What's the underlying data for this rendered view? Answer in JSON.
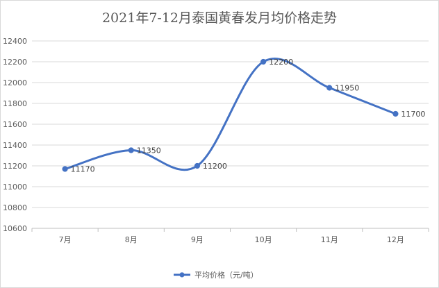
{
  "chart_data": {
    "type": "line",
    "title": "2021年7-12月泰国黄春发月均价格走势",
    "categories": [
      "7月",
      "8月",
      "9月",
      "10月",
      "11月",
      "12月"
    ],
    "series": [
      {
        "name": "平均价格（元/吨）",
        "values": [
          11170,
          11350,
          11200,
          12200,
          11950,
          11700
        ],
        "color": "#4472c4"
      }
    ],
    "ylim": [
      10600,
      12400
    ],
    "yticks": [
      10600,
      10800,
      11000,
      11200,
      11400,
      11600,
      11800,
      12000,
      12200,
      12400
    ],
    "grid": true,
    "smooth": true,
    "data_labels": true,
    "legend_position": "bottom"
  }
}
